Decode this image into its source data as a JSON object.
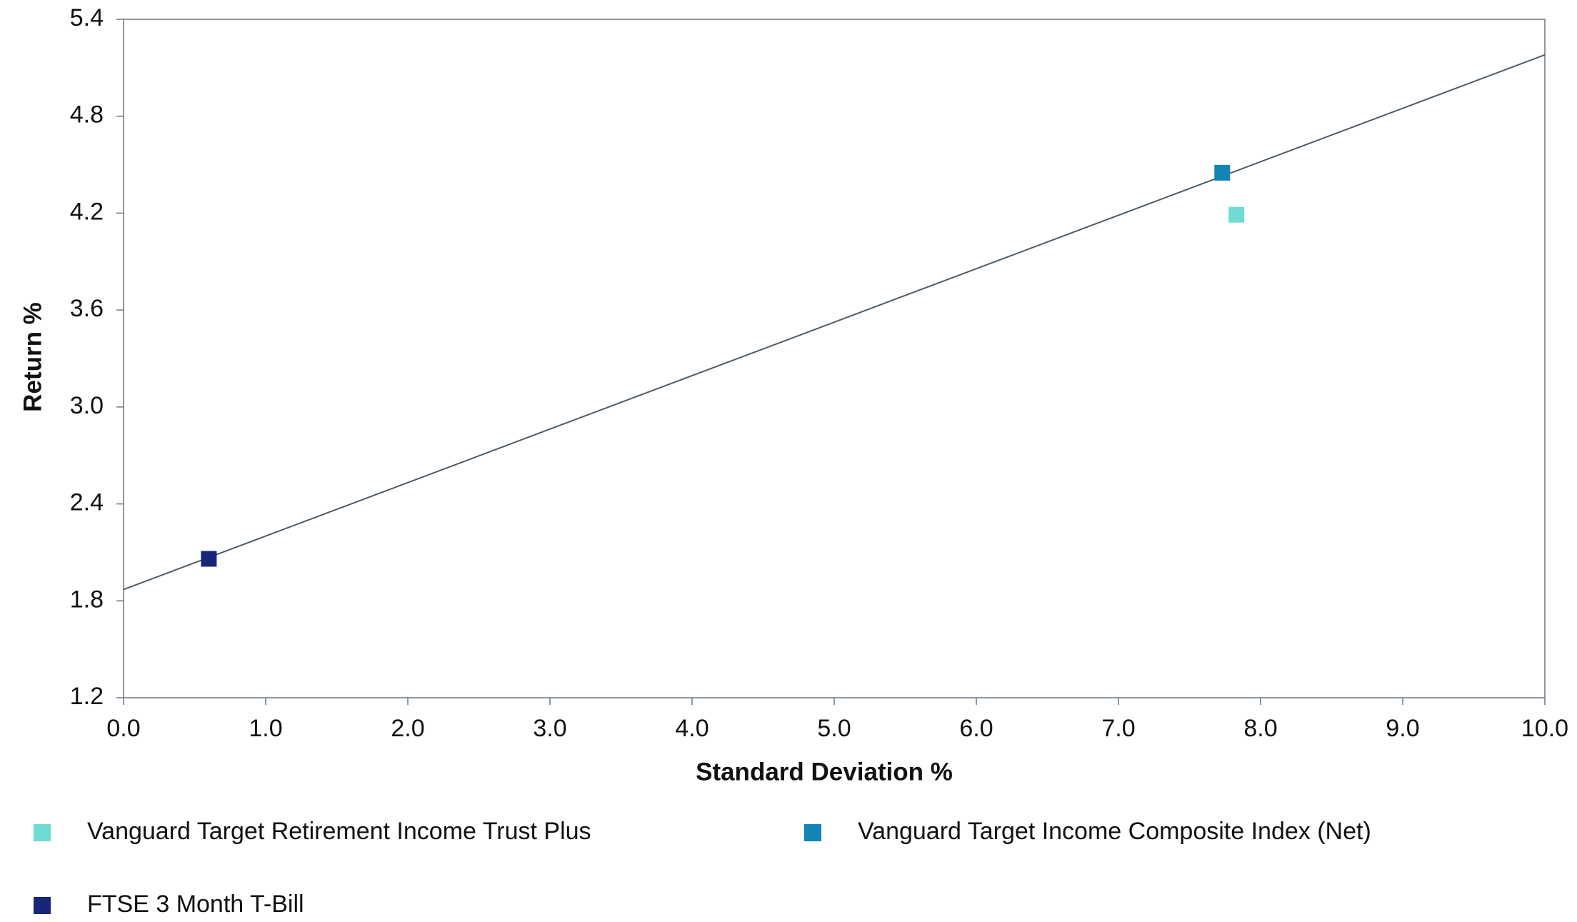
{
  "chart_data": {
    "type": "scatter",
    "x_label": "Standard Deviation %",
    "y_label": "Return %",
    "xlim": [
      0,
      10
    ],
    "ylim": [
      1.2,
      5.4
    ],
    "xticks": [
      {
        "value": 0,
        "label": "0.0"
      },
      {
        "value": 1,
        "label": "1.0"
      },
      {
        "value": 2,
        "label": "2.0"
      },
      {
        "value": 3,
        "label": "3.0"
      },
      {
        "value": 4,
        "label": "4.0"
      },
      {
        "value": 5,
        "label": "5.0"
      },
      {
        "value": 6,
        "label": "6.0"
      },
      {
        "value": 7,
        "label": "7.0"
      },
      {
        "value": 8,
        "label": "8.0"
      },
      {
        "value": 9,
        "label": "9.0"
      },
      {
        "value": 10,
        "label": "10.0"
      }
    ],
    "yticks": [
      1.2,
      1.8,
      2.4,
      {
        "value": 3,
        "label": "3.0"
      },
      3.6,
      4.2,
      4.8,
      5.4
    ],
    "grid": false,
    "legend": "bottom",
    "series": [
      {
        "name": "Vanguard Target Retirement Income Trust Plus",
        "color": "#6fdcd2",
        "x": [
          7.83
        ],
        "values": [
          4.19
        ]
      },
      {
        "name": "Vanguard Target Income Composite Index (Net)",
        "color": "#1384b6",
        "x": [
          7.73
        ],
        "values": [
          4.45
        ]
      },
      {
        "name": "FTSE 3 Month T-Bill",
        "color": "#172679",
        "x": [
          0.6
        ],
        "values": [
          2.06
        ]
      }
    ],
    "fit_line": {
      "color": "#4d5c69",
      "x": [
        0,
        10
      ],
      "values": [
        1.87,
        5.18
      ]
    }
  }
}
